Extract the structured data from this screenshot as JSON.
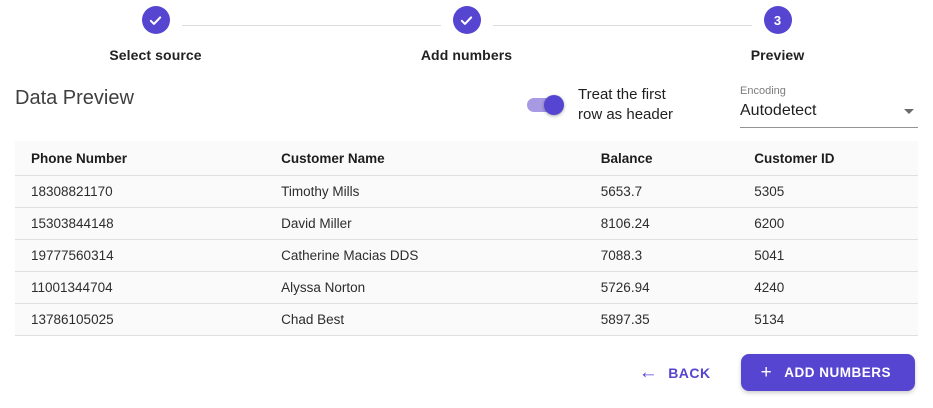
{
  "colors": {
    "accent": "#5645d0",
    "toggle_track": "#a79ae3",
    "connector": "#dcdcdc"
  },
  "stepper": {
    "steps": [
      {
        "label": "Select source",
        "state": "completed",
        "icon": "check"
      },
      {
        "label": "Add numbers",
        "state": "completed",
        "icon": "check"
      },
      {
        "label": "Preview",
        "state": "active",
        "number": "3"
      }
    ]
  },
  "header": {
    "title": "Data Preview",
    "toggle": {
      "label": "Treat the first row as header",
      "state": "on"
    },
    "encoding": {
      "label": "Encoding",
      "value": "Autodetect"
    }
  },
  "table": {
    "columns": [
      "Phone Number",
      "Customer Name",
      "Balance",
      "Customer ID"
    ],
    "rows": [
      [
        "18308821170",
        "Timothy Mills",
        "5653.7",
        "5305"
      ],
      [
        "15303844148",
        "David Miller",
        "8106.24",
        "6200"
      ],
      [
        "19777560314",
        "Catherine Macias DDS",
        "7088.3",
        "5041"
      ],
      [
        "11001344704",
        "Alyssa Norton",
        "5726.94",
        "4240"
      ],
      [
        "13786105025",
        "Chad Best",
        "5897.35",
        "5134"
      ]
    ]
  },
  "footer": {
    "back_label": "BACK",
    "add_label": "ADD NUMBERS"
  }
}
